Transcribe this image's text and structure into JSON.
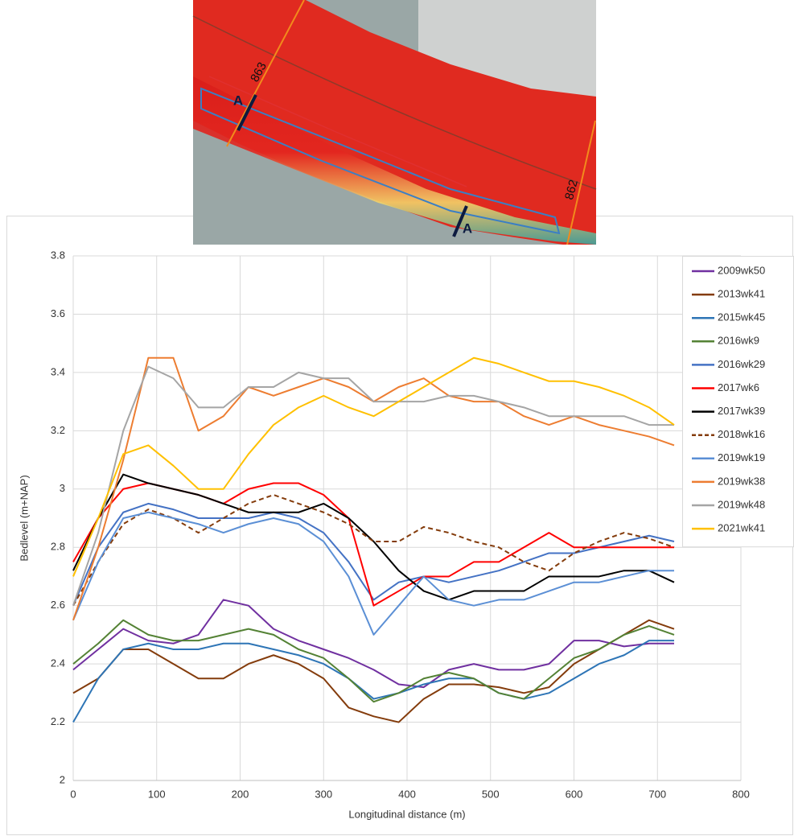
{
  "chart_data": {
    "type": "line",
    "xlabel": "Longitudinal distance (m)",
    "ylabel": "Bedlevel (m+NAP)",
    "x": [
      0,
      30,
      60,
      90,
      120,
      150,
      180,
      210,
      240,
      270,
      300,
      330,
      360,
      390,
      420,
      450,
      480,
      510,
      540,
      570,
      600,
      630,
      660,
      690,
      720
    ],
    "xlim": [
      0,
      800
    ],
    "xticks": [
      0,
      100,
      200,
      300,
      400,
      500,
      600,
      700,
      800
    ],
    "ylim": [
      2,
      3.8
    ],
    "yticks": [
      2,
      2.2,
      2.4,
      2.6,
      2.8,
      3,
      3.2,
      3.4,
      3.6,
      3.8
    ],
    "grid": true,
    "legend": "right",
    "series": [
      {
        "name": "2009wk50",
        "color": "#7030a0",
        "values": [
          2.38,
          2.45,
          2.52,
          2.48,
          2.47,
          2.5,
          2.62,
          2.6,
          2.52,
          2.48,
          2.45,
          2.42,
          2.38,
          2.33,
          2.32,
          2.38,
          2.4,
          2.38,
          2.38,
          2.4,
          2.48,
          2.48,
          2.46,
          2.47,
          2.47
        ]
      },
      {
        "name": "2013wk41",
        "color": "#843c0c",
        "values": [
          2.3,
          2.35,
          2.45,
          2.45,
          2.4,
          2.35,
          2.35,
          2.4,
          2.43,
          2.4,
          2.35,
          2.25,
          2.22,
          2.2,
          2.28,
          2.33,
          2.33,
          2.32,
          2.3,
          2.32,
          2.4,
          2.45,
          2.5,
          2.55,
          2.52
        ]
      },
      {
        "name": "2015wk45",
        "color": "#2e75b6",
        "values": [
          2.2,
          2.35,
          2.45,
          2.47,
          2.45,
          2.45,
          2.47,
          2.47,
          2.45,
          2.43,
          2.4,
          2.35,
          2.28,
          2.3,
          2.33,
          2.35,
          2.35,
          2.3,
          2.28,
          2.3,
          2.35,
          2.4,
          2.43,
          2.48,
          2.48
        ]
      },
      {
        "name": "2016wk9",
        "color": "#548235",
        "values": [
          2.4,
          2.47,
          2.55,
          2.5,
          2.48,
          2.48,
          2.5,
          2.52,
          2.5,
          2.45,
          2.42,
          2.35,
          2.27,
          2.3,
          2.35,
          2.37,
          2.35,
          2.3,
          2.28,
          2.35,
          2.42,
          2.45,
          2.5,
          2.53,
          2.5
        ]
      },
      {
        "name": "2016wk29",
        "color": "#4472c4",
        "values": [
          2.6,
          2.8,
          2.92,
          2.95,
          2.93,
          2.9,
          2.9,
          2.9,
          2.92,
          2.9,
          2.85,
          2.75,
          2.62,
          2.68,
          2.7,
          2.68,
          2.7,
          2.72,
          2.75,
          2.78,
          2.78,
          2.8,
          2.82,
          2.84,
          2.82
        ]
      },
      {
        "name": "2017wk6",
        "color": "#ff0000",
        "values": [
          2.75,
          2.9,
          3.0,
          3.02,
          3.0,
          2.98,
          2.95,
          3.0,
          3.02,
          3.02,
          2.98,
          2.9,
          2.6,
          2.65,
          2.7,
          2.7,
          2.75,
          2.75,
          2.8,
          2.85,
          2.8,
          2.8,
          2.8,
          2.8,
          2.8
        ]
      },
      {
        "name": "2017wk39",
        "color": "#000000",
        "values": [
          2.72,
          2.9,
          3.05,
          3.02,
          3.0,
          2.98,
          2.95,
          2.92,
          2.92,
          2.92,
          2.95,
          2.9,
          2.82,
          2.72,
          2.65,
          2.62,
          2.65,
          2.65,
          2.65,
          2.7,
          2.7,
          2.7,
          2.72,
          2.72,
          2.68
        ]
      },
      {
        "name": "2018wk16",
        "color": "#843c0c",
        "dashed": true,
        "values": [
          2.6,
          2.75,
          2.88,
          2.93,
          2.9,
          2.85,
          2.9,
          2.95,
          2.98,
          2.95,
          2.92,
          2.88,
          2.82,
          2.82,
          2.87,
          2.85,
          2.82,
          2.8,
          2.75,
          2.72,
          2.78,
          2.82,
          2.85,
          2.83,
          2.8
        ]
      },
      {
        "name": "2019wk19",
        "color": "#5b8fd5",
        "values": [
          2.55,
          2.75,
          2.9,
          2.92,
          2.9,
          2.88,
          2.85,
          2.88,
          2.9,
          2.88,
          2.82,
          2.7,
          2.5,
          2.6,
          2.7,
          2.62,
          2.6,
          2.62,
          2.62,
          2.65,
          2.68,
          2.68,
          2.7,
          2.72,
          2.72
        ]
      },
      {
        "name": "2019wk38",
        "color": "#ed7d31",
        "values": [
          2.55,
          2.8,
          3.1,
          3.45,
          3.45,
          3.2,
          3.25,
          3.35,
          3.32,
          3.35,
          3.38,
          3.35,
          3.3,
          3.35,
          3.38,
          3.32,
          3.3,
          3.3,
          3.25,
          3.22,
          3.25,
          3.22,
          3.2,
          3.18,
          3.15
        ]
      },
      {
        "name": "2019wk48",
        "color": "#a5a5a5",
        "values": [
          2.6,
          2.85,
          3.2,
          3.42,
          3.38,
          3.28,
          3.28,
          3.35,
          3.35,
          3.4,
          3.38,
          3.38,
          3.3,
          3.3,
          3.3,
          3.32,
          3.32,
          3.3,
          3.28,
          3.25,
          3.25,
          3.25,
          3.25,
          3.22,
          3.22
        ]
      },
      {
        "name": "2021wk41",
        "color": "#ffc000",
        "values": [
          2.7,
          2.9,
          3.12,
          3.15,
          3.08,
          3.0,
          3.0,
          3.12,
          3.22,
          3.28,
          3.32,
          3.28,
          3.25,
          3.3,
          3.35,
          3.4,
          3.45,
          3.43,
          3.4,
          3.37,
          3.37,
          3.35,
          3.32,
          3.28,
          3.22
        ]
      }
    ]
  },
  "map": {
    "labels": [
      "863",
      "862",
      "A",
      "A"
    ]
  }
}
